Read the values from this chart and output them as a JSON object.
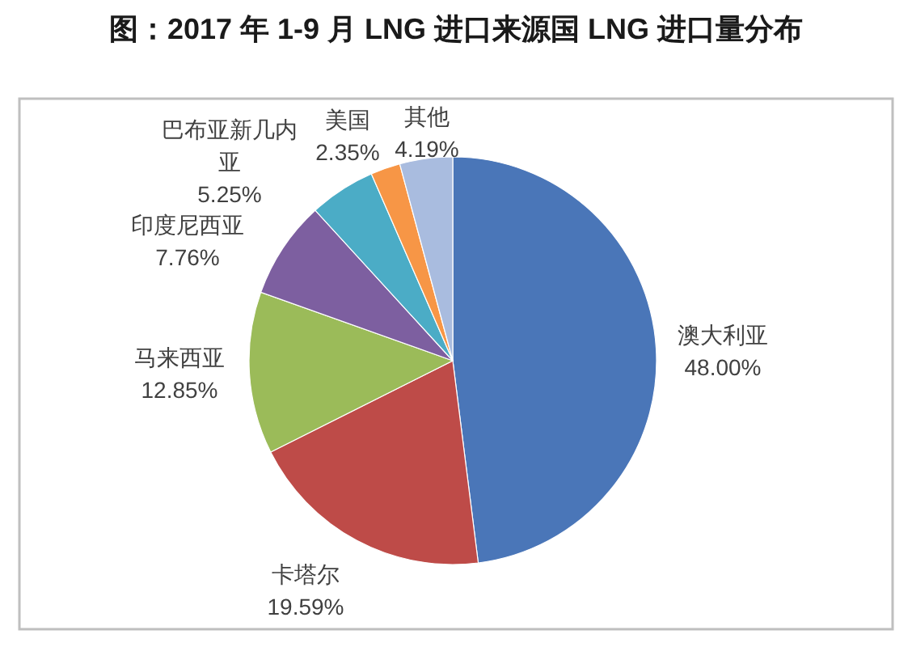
{
  "chart_data": {
    "type": "pie",
    "title": "图：2017 年 1-9 月 LNG 进口来源国 LNG 进口量分布",
    "categories": [
      "澳大利亚",
      "卡塔尔",
      "马来西亚",
      "印度尼西亚",
      "巴布亚新几内亚",
      "美国",
      "其他"
    ],
    "values": [
      48.0,
      19.59,
      12.85,
      7.76,
      5.25,
      2.35,
      4.19
    ],
    "colors": [
      "#4a76b8",
      "#be4b48",
      "#9bbb59",
      "#7d5fa0",
      "#4bacc6",
      "#f79646",
      "#a9bcdf"
    ],
    "value_labels": [
      "48.00%",
      "19.59%",
      "12.85%",
      "7.76%",
      "5.25%",
      "2.35%",
      "4.19%"
    ]
  }
}
